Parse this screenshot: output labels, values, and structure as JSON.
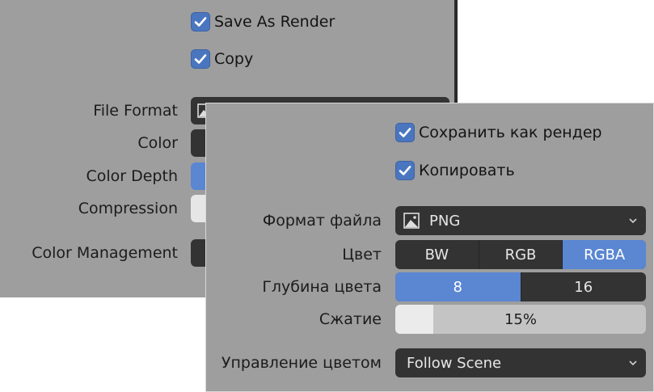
{
  "en": {
    "save_as_render": "Save As Render",
    "copy": "Copy",
    "file_format_label": "File Format",
    "color_label": "Color",
    "color_depth_label": "Color Depth",
    "compression_label": "Compression",
    "color_management_label": "Color Management"
  },
  "ru": {
    "save_as_render": "Сохранить как рендер",
    "copy": "Копировать",
    "file_format_label": "Формат файла",
    "file_format_value": "PNG",
    "color_label": "Цвет",
    "color_options": [
      "BW",
      "RGB",
      "RGBA"
    ],
    "color_selected": "RGBA",
    "color_depth_label": "Глубина цвета",
    "color_depth_options": [
      "8",
      "16"
    ],
    "color_depth_selected": "8",
    "compression_label": "Сжатие",
    "compression_value": "15%",
    "compression_fraction": 0.15,
    "color_management_label": "Управление цветом",
    "color_management_value": "Follow Scene"
  },
  "colors": {
    "panel_bg": "#9e9e9e",
    "widget_dark": "#333333",
    "accent": "#5a86d2"
  }
}
